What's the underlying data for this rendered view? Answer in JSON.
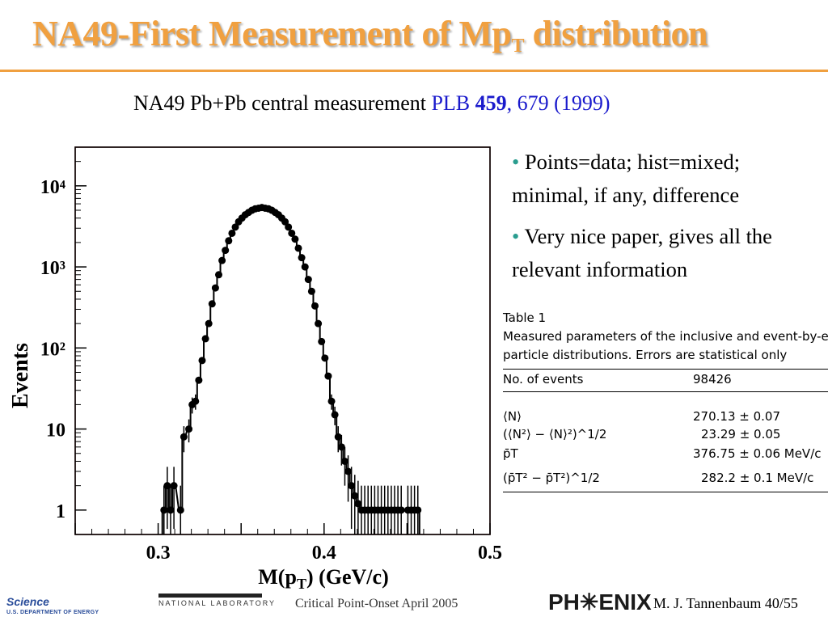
{
  "slide": {
    "title_main": "NA49-First Measurement of Mp",
    "title_sub": "T",
    "title_end": " distribution",
    "subtitle_text": "NA49 Pb+Pb central measurement ",
    "subtitle_ref_journal": "PLB ",
    "subtitle_ref_volume": "459",
    "subtitle_ref_pages": ", 679 (1999)",
    "bullets": [
      "Points=data; hist=mixed; minimal, if any, difference",
      "Very nice paper, gives all the relevant information"
    ]
  },
  "table": {
    "caption_line1": "Table 1",
    "caption_line2": "Measured parameters of the inclusive and event-by-event",
    "caption_line3": "particle distributions. Errors are statistical only",
    "rows": [
      {
        "label": "No. of events",
        "value": "98426"
      },
      {
        "label": "⟨N⟩",
        "value": "270.13 ± 0.07"
      },
      {
        "label": "(⟨N²⟩ − ⟨N⟩²)^1/2",
        "value": "23.29 ± 0.05"
      },
      {
        "label": "p̄T",
        "value": "376.75 ± 0.06 MeV/c"
      },
      {
        "label": "(p̄T² − p̄T²)^1/2",
        "value": "282.2 ± 0.1 MeV/c"
      }
    ]
  },
  "footer": {
    "science": "Science",
    "doe": "U.S. DEPARTMENT OF ENERGY",
    "natlab": "NATIONAL LABORATORY",
    "conference": "Critical Point-Onset April 2005",
    "phenix": "PH✳ENIX",
    "author": "M. J. Tannenbaum   40/55"
  },
  "chart_data": {
    "type": "scatter",
    "xlabel": "M(pT) (GeV/c)",
    "ylabel": "Events",
    "x_ticks": [
      "0.3",
      "0.4",
      "0.5"
    ],
    "y_ticks": [
      "1",
      "10",
      "10²",
      "10³",
      "10⁴"
    ],
    "xlim": [
      0.25,
      0.5
    ],
    "ylim": [
      0.5,
      30000
    ],
    "yscale": "log",
    "series": [
      {
        "kind": "points-with-errors",
        "x": [
          0.3035,
          0.3055,
          0.3075,
          0.3095,
          0.3135,
          0.3155,
          0.3185,
          0.3205,
          0.3225,
          0.3245,
          0.3265,
          0.3285,
          0.3305,
          0.3325,
          0.3345,
          0.3365,
          0.3385,
          0.3405,
          0.3425,
          0.3445,
          0.3465,
          0.3485,
          0.3505,
          0.3525,
          0.3545,
          0.3565,
          0.3585,
          0.3605,
          0.3625,
          0.3645,
          0.3665,
          0.3685,
          0.3705,
          0.3725,
          0.3745,
          0.3765,
          0.3785,
          0.3805,
          0.3825,
          0.3845,
          0.3865,
          0.3885,
          0.3905,
          0.3925,
          0.3945,
          0.3965,
          0.3985,
          0.4005,
          0.4025,
          0.4045,
          0.4065,
          0.4085,
          0.4105,
          0.4125,
          0.4145,
          0.4165,
          0.4185,
          0.4205,
          0.4225,
          0.4245,
          0.4265,
          0.4285,
          0.4305,
          0.4325,
          0.4345,
          0.4365,
          0.4385,
          0.4405,
          0.4425,
          0.4445,
          0.4465,
          0.4505,
          0.4525,
          0.4545,
          0.4565
        ],
        "y": [
          1,
          2,
          1,
          2,
          1,
          8,
          10,
          20,
          22,
          40,
          70,
          130,
          200,
          350,
          550,
          800,
          1200,
          1600,
          2100,
          2600,
          3100,
          3600,
          4000,
          4400,
          4700,
          5000,
          5200,
          5300,
          5400,
          5300,
          5200,
          5000,
          4700,
          4400,
          4000,
          3600,
          3100,
          2600,
          2200,
          1700,
          1300,
          1000,
          700,
          500,
          330,
          200,
          120,
          75,
          45,
          22,
          15,
          8,
          6,
          4,
          3,
          2,
          1.5,
          1.2,
          1,
          1,
          1,
          1,
          1,
          1,
          1,
          1,
          1,
          1,
          1,
          1,
          1,
          1,
          1,
          1,
          1
        ]
      }
    ]
  }
}
